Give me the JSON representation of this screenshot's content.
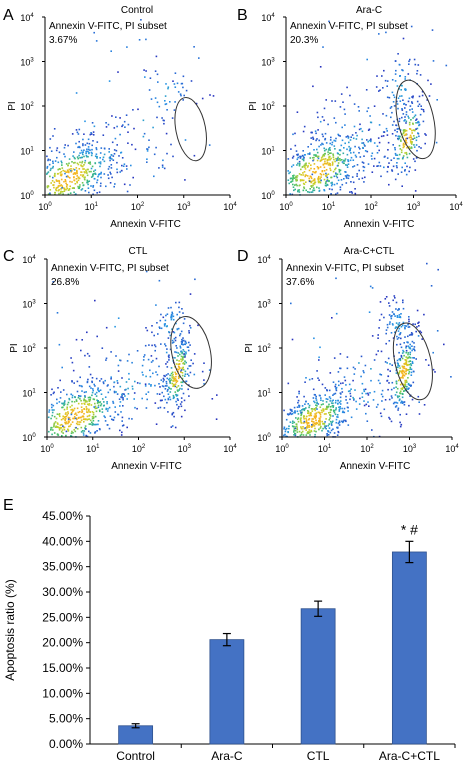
{
  "figure": {
    "panels": [
      {
        "letter": "A",
        "title": "Control",
        "subset_label": "Annexin V-FITC, PI subset",
        "percent": "3.67%",
        "xlabel": "Annexin V-FITC",
        "ylabel": "PI"
      },
      {
        "letter": "B",
        "title": "Ara-C",
        "subset_label": "Annexin V-FITC, PI subset",
        "percent": "20.3%",
        "xlabel": "Annexin V-FITC",
        "ylabel": "PI"
      },
      {
        "letter": "C",
        "title": "CTL",
        "subset_label": "Annexin V-FITC, PI subset",
        "percent": "26.8%",
        "xlabel": "Annexin V-FITC",
        "ylabel": "PI"
      },
      {
        "letter": "D",
        "title": "Ara-C+CTL",
        "subset_label": "Annexin V-FITC, PI subset",
        "percent": "37.6%",
        "xlabel": "Annexin V-FITC",
        "ylabel": "PI"
      }
    ],
    "panel_e_letter": "E",
    "log_ticks": [
      "10",
      "10",
      "10",
      "10",
      "10"
    ],
    "log_exponents": [
      "0",
      "1",
      "2",
      "3",
      "4"
    ],
    "colors": {
      "bar": "#4472c4",
      "bar_edge": "#2f528f",
      "density_low": "#1f3fb4",
      "density_high": "#f0c020"
    }
  },
  "chart_data": [
    {
      "type": "scatter",
      "panel": "A",
      "title": "Control",
      "xlabel": "Annexin V-FITC",
      "ylabel": "PI",
      "xscale": "log",
      "yscale": "log",
      "xlim": [
        1,
        10000
      ],
      "ylim": [
        1,
        10000
      ],
      "gated_percent": 3.67
    },
    {
      "type": "scatter",
      "panel": "B",
      "title": "Ara-C",
      "xlabel": "Annexin V-FITC",
      "ylabel": "PI",
      "xscale": "log",
      "yscale": "log",
      "xlim": [
        1,
        10000
      ],
      "ylim": [
        1,
        10000
      ],
      "gated_percent": 20.3
    },
    {
      "type": "scatter",
      "panel": "C",
      "title": "CTL",
      "xlabel": "Annexin V-FITC",
      "ylabel": "PI",
      "xscale": "log",
      "yscale": "log",
      "xlim": [
        1,
        10000
      ],
      "ylim": [
        1,
        10000
      ],
      "gated_percent": 26.8
    },
    {
      "type": "scatter",
      "panel": "D",
      "title": "Ara-C+CTL",
      "xlabel": "Annexin V-FITC",
      "ylabel": "PI",
      "xscale": "log",
      "yscale": "log",
      "xlim": [
        1,
        10000
      ],
      "ylim": [
        1,
        10000
      ],
      "gated_percent": 37.6
    },
    {
      "type": "bar",
      "panel": "E",
      "ylabel": "Apoptosis ratio (%)",
      "categories": [
        "Control",
        "Ara-C",
        "CTL",
        "Ara-C+CTL"
      ],
      "values": [
        3.6,
        20.6,
        26.7,
        37.9
      ],
      "errors": [
        0.4,
        1.2,
        1.5,
        2.1
      ],
      "ylim": [
        0,
        45
      ],
      "yticks": [
        "0.00%",
        "5.00%",
        "10.00%",
        "15.00%",
        "20.00%",
        "25.00%",
        "30.00%",
        "35.00%",
        "40.00%",
        "45.00%"
      ],
      "annotation": "* #",
      "annotation_category": "Ara-C+CTL"
    }
  ]
}
